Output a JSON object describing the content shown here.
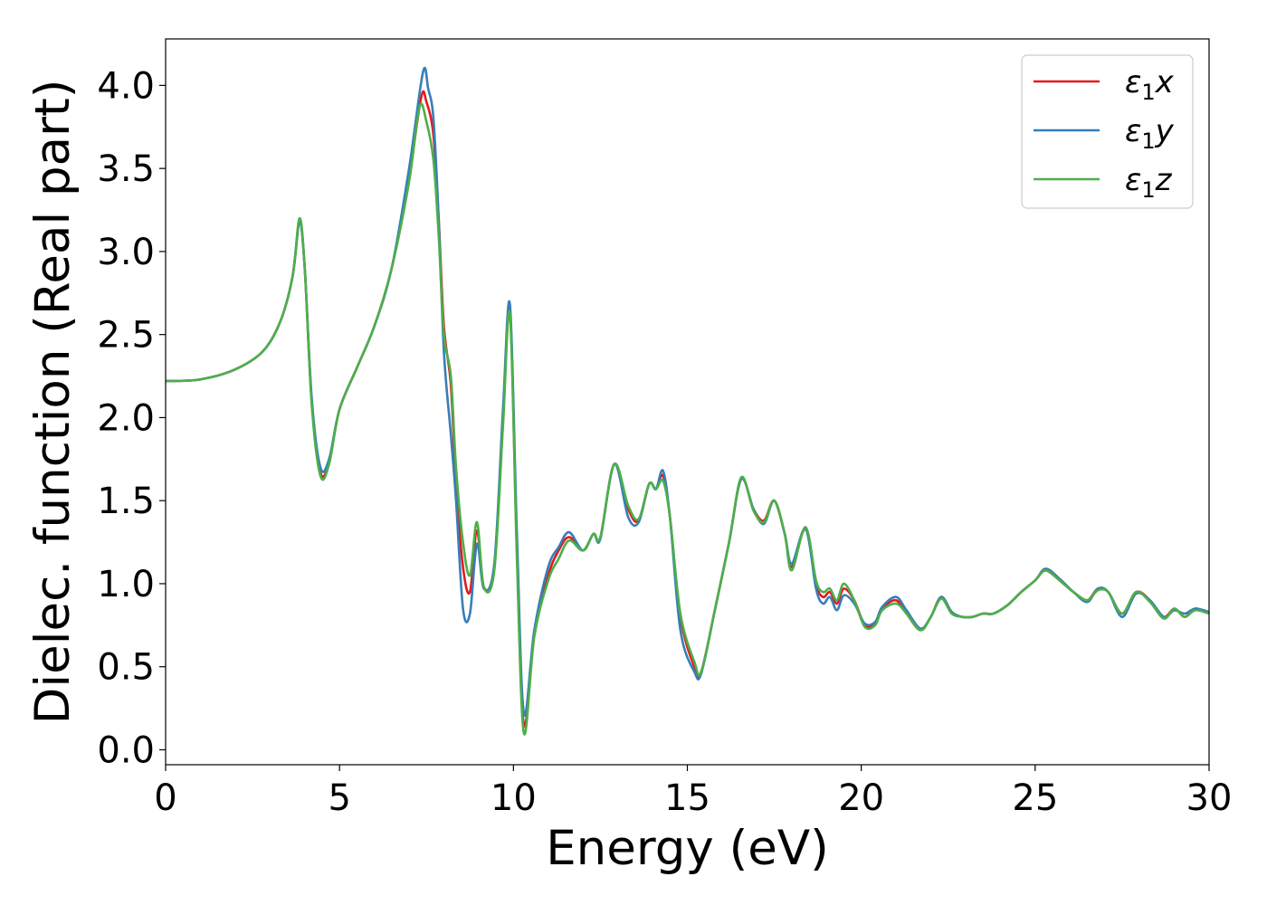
{
  "chart_data": {
    "type": "line",
    "xlabel": "Energy (eV)",
    "ylabel": "Dielec. function (Real part)",
    "xlim": [
      0,
      30
    ],
    "ylim": [
      -0.09,
      4.28
    ],
    "x_ticks": [
      "0",
      "5",
      "10",
      "15",
      "20",
      "25",
      "30"
    ],
    "x_tick_values": [
      0,
      5,
      10,
      15,
      20,
      25,
      30
    ],
    "y_ticks": [
      "0.0",
      "0.5",
      "1.0",
      "1.5",
      "2.0",
      "2.5",
      "3.0",
      "3.5",
      "4.0"
    ],
    "y_tick_values": [
      0.0,
      0.5,
      1.0,
      1.5,
      2.0,
      2.5,
      3.0,
      3.5,
      4.0
    ],
    "grid": false,
    "legend_position": "top-right",
    "series": [
      {
        "name": "ε1x",
        "symbol": "ε",
        "subscript": "1",
        "suffix": "x",
        "color": "#e41a1c",
        "points": [
          [
            0,
            2.22
          ],
          [
            1,
            2.23
          ],
          [
            2,
            2.29
          ],
          [
            2.8,
            2.4
          ],
          [
            3.3,
            2.58
          ],
          [
            3.65,
            2.85
          ],
          [
            3.85,
            3.18
          ],
          [
            4.0,
            2.9
          ],
          [
            4.2,
            2.1
          ],
          [
            4.45,
            1.67
          ],
          [
            4.7,
            1.73
          ],
          [
            5.0,
            2.05
          ],
          [
            5.5,
            2.3
          ],
          [
            6.0,
            2.55
          ],
          [
            6.5,
            2.9
          ],
          [
            7.0,
            3.45
          ],
          [
            7.35,
            3.93
          ],
          [
            7.5,
            3.9
          ],
          [
            7.7,
            3.7
          ],
          [
            7.85,
            3.2
          ],
          [
            8.0,
            2.55
          ],
          [
            8.2,
            2.2
          ],
          [
            8.35,
            1.6
          ],
          [
            8.55,
            1.1
          ],
          [
            8.75,
            0.95
          ],
          [
            8.95,
            1.32
          ],
          [
            9.15,
            0.98
          ],
          [
            9.45,
            1.1
          ],
          [
            9.7,
            2.0
          ],
          [
            9.9,
            2.65
          ],
          [
            10.1,
            1.2
          ],
          [
            10.3,
            0.15
          ],
          [
            10.6,
            0.7
          ],
          [
            11.0,
            1.05
          ],
          [
            11.3,
            1.2
          ],
          [
            11.6,
            1.28
          ],
          [
            12.0,
            1.2
          ],
          [
            12.3,
            1.3
          ],
          [
            12.5,
            1.28
          ],
          [
            12.9,
            1.72
          ],
          [
            13.3,
            1.45
          ],
          [
            13.6,
            1.38
          ],
          [
            13.9,
            1.6
          ],
          [
            14.1,
            1.57
          ],
          [
            14.3,
            1.65
          ],
          [
            14.5,
            1.4
          ],
          [
            14.8,
            0.8
          ],
          [
            15.2,
            0.5
          ],
          [
            15.4,
            0.47
          ],
          [
            15.8,
            0.85
          ],
          [
            16.2,
            1.25
          ],
          [
            16.55,
            1.63
          ],
          [
            16.9,
            1.45
          ],
          [
            17.2,
            1.38
          ],
          [
            17.5,
            1.5
          ],
          [
            17.8,
            1.3
          ],
          [
            18.0,
            1.1
          ],
          [
            18.4,
            1.33
          ],
          [
            18.7,
            1.0
          ],
          [
            18.9,
            0.92
          ],
          [
            19.1,
            0.95
          ],
          [
            19.3,
            0.88
          ],
          [
            19.5,
            0.97
          ],
          [
            19.8,
            0.9
          ],
          [
            20.1,
            0.75
          ],
          [
            20.4,
            0.76
          ],
          [
            20.6,
            0.85
          ],
          [
            21.0,
            0.9
          ],
          [
            21.3,
            0.82
          ],
          [
            21.7,
            0.72
          ],
          [
            22.0,
            0.8
          ],
          [
            22.3,
            0.92
          ],
          [
            22.6,
            0.83
          ],
          [
            22.9,
            0.8
          ],
          [
            23.2,
            0.8
          ],
          [
            23.5,
            0.82
          ],
          [
            23.8,
            0.82
          ],
          [
            24.2,
            0.87
          ],
          [
            24.6,
            0.95
          ],
          [
            25.0,
            1.02
          ],
          [
            25.3,
            1.08
          ],
          [
            25.7,
            1.02
          ],
          [
            26.1,
            0.95
          ],
          [
            26.5,
            0.9
          ],
          [
            26.8,
            0.97
          ],
          [
            27.1,
            0.95
          ],
          [
            27.5,
            0.82
          ],
          [
            27.9,
            0.95
          ],
          [
            28.3,
            0.9
          ],
          [
            28.7,
            0.8
          ],
          [
            29.0,
            0.85
          ],
          [
            29.3,
            0.8
          ],
          [
            29.6,
            0.85
          ],
          [
            30.0,
            0.82
          ]
        ]
      },
      {
        "name": "ε1y",
        "symbol": "ε",
        "subscript": "1",
        "suffix": "y",
        "color": "#377eb8",
        "points": [
          [
            0,
            2.22
          ],
          [
            1,
            2.23
          ],
          [
            2,
            2.29
          ],
          [
            2.8,
            2.4
          ],
          [
            3.3,
            2.58
          ],
          [
            3.65,
            2.85
          ],
          [
            3.85,
            3.18
          ],
          [
            4.0,
            2.9
          ],
          [
            4.2,
            2.12
          ],
          [
            4.45,
            1.7
          ],
          [
            4.7,
            1.75
          ],
          [
            5.0,
            2.05
          ],
          [
            5.5,
            2.3
          ],
          [
            6.0,
            2.55
          ],
          [
            6.5,
            2.9
          ],
          [
            7.0,
            3.5
          ],
          [
            7.4,
            4.08
          ],
          [
            7.55,
            3.98
          ],
          [
            7.7,
            3.8
          ],
          [
            7.85,
            3.2
          ],
          [
            8.0,
            2.4
          ],
          [
            8.2,
            1.9
          ],
          [
            8.35,
            1.5
          ],
          [
            8.55,
            0.85
          ],
          [
            8.75,
            0.82
          ],
          [
            8.95,
            1.24
          ],
          [
            9.15,
            0.97
          ],
          [
            9.45,
            1.12
          ],
          [
            9.7,
            2.05
          ],
          [
            9.9,
            2.68
          ],
          [
            10.1,
            1.3
          ],
          [
            10.3,
            0.22
          ],
          [
            10.6,
            0.72
          ],
          [
            11.0,
            1.1
          ],
          [
            11.3,
            1.22
          ],
          [
            11.6,
            1.31
          ],
          [
            12.0,
            1.2
          ],
          [
            12.3,
            1.3
          ],
          [
            12.5,
            1.27
          ],
          [
            12.9,
            1.72
          ],
          [
            13.3,
            1.4
          ],
          [
            13.6,
            1.37
          ],
          [
            13.9,
            1.6
          ],
          [
            14.1,
            1.57
          ],
          [
            14.3,
            1.68
          ],
          [
            14.5,
            1.4
          ],
          [
            14.8,
            0.72
          ],
          [
            15.2,
            0.47
          ],
          [
            15.4,
            0.46
          ],
          [
            15.8,
            0.85
          ],
          [
            16.2,
            1.25
          ],
          [
            16.55,
            1.63
          ],
          [
            16.9,
            1.45
          ],
          [
            17.2,
            1.36
          ],
          [
            17.5,
            1.5
          ],
          [
            17.8,
            1.3
          ],
          [
            18.0,
            1.12
          ],
          [
            18.4,
            1.33
          ],
          [
            18.7,
            0.97
          ],
          [
            18.9,
            0.88
          ],
          [
            19.1,
            0.92
          ],
          [
            19.3,
            0.84
          ],
          [
            19.5,
            0.93
          ],
          [
            19.8,
            0.88
          ],
          [
            20.1,
            0.76
          ],
          [
            20.4,
            0.77
          ],
          [
            20.6,
            0.86
          ],
          [
            21.0,
            0.92
          ],
          [
            21.3,
            0.84
          ],
          [
            21.7,
            0.73
          ],
          [
            22.0,
            0.8
          ],
          [
            22.3,
            0.92
          ],
          [
            22.6,
            0.83
          ],
          [
            22.9,
            0.8
          ],
          [
            23.2,
            0.8
          ],
          [
            23.5,
            0.82
          ],
          [
            23.8,
            0.82
          ],
          [
            24.2,
            0.87
          ],
          [
            24.6,
            0.95
          ],
          [
            25.0,
            1.02
          ],
          [
            25.3,
            1.09
          ],
          [
            25.7,
            1.03
          ],
          [
            26.1,
            0.95
          ],
          [
            26.5,
            0.89
          ],
          [
            26.8,
            0.97
          ],
          [
            27.1,
            0.95
          ],
          [
            27.5,
            0.8
          ],
          [
            27.9,
            0.94
          ],
          [
            28.3,
            0.9
          ],
          [
            28.7,
            0.8
          ],
          [
            29.0,
            0.84
          ],
          [
            29.3,
            0.82
          ],
          [
            29.6,
            0.85
          ],
          [
            30.0,
            0.83
          ]
        ]
      },
      {
        "name": "ε1z",
        "symbol": "ε",
        "subscript": "1",
        "suffix": "z",
        "color": "#4daf4a",
        "points": [
          [
            0,
            2.22
          ],
          [
            1,
            2.23
          ],
          [
            2,
            2.29
          ],
          [
            2.8,
            2.4
          ],
          [
            3.3,
            2.58
          ],
          [
            3.65,
            2.85
          ],
          [
            3.85,
            3.2
          ],
          [
            4.0,
            2.9
          ],
          [
            4.2,
            2.08
          ],
          [
            4.45,
            1.65
          ],
          [
            4.7,
            1.72
          ],
          [
            5.0,
            2.05
          ],
          [
            5.5,
            2.3
          ],
          [
            6.0,
            2.55
          ],
          [
            6.5,
            2.9
          ],
          [
            7.0,
            3.42
          ],
          [
            7.3,
            3.87
          ],
          [
            7.5,
            3.78
          ],
          [
            7.7,
            3.55
          ],
          [
            7.85,
            3.1
          ],
          [
            8.0,
            2.5
          ],
          [
            8.2,
            2.25
          ],
          [
            8.35,
            1.7
          ],
          [
            8.55,
            1.25
          ],
          [
            8.75,
            1.05
          ],
          [
            8.95,
            1.37
          ],
          [
            9.15,
            0.98
          ],
          [
            9.45,
            1.08
          ],
          [
            9.7,
            1.95
          ],
          [
            9.9,
            2.62
          ],
          [
            10.1,
            1.15
          ],
          [
            10.3,
            0.1
          ],
          [
            10.6,
            0.68
          ],
          [
            11.0,
            1.02
          ],
          [
            11.3,
            1.15
          ],
          [
            11.6,
            1.26
          ],
          [
            12.0,
            1.2
          ],
          [
            12.3,
            1.3
          ],
          [
            12.5,
            1.28
          ],
          [
            12.9,
            1.72
          ],
          [
            13.3,
            1.47
          ],
          [
            13.6,
            1.39
          ],
          [
            13.9,
            1.6
          ],
          [
            14.1,
            1.57
          ],
          [
            14.3,
            1.62
          ],
          [
            14.5,
            1.4
          ],
          [
            14.8,
            0.82
          ],
          [
            15.2,
            0.53
          ],
          [
            15.4,
            0.47
          ],
          [
            15.8,
            0.85
          ],
          [
            16.2,
            1.25
          ],
          [
            16.55,
            1.64
          ],
          [
            16.9,
            1.44
          ],
          [
            17.2,
            1.37
          ],
          [
            17.5,
            1.5
          ],
          [
            17.8,
            1.3
          ],
          [
            18.0,
            1.08
          ],
          [
            18.4,
            1.34
          ],
          [
            18.7,
            1.02
          ],
          [
            18.9,
            0.95
          ],
          [
            19.1,
            0.97
          ],
          [
            19.3,
            0.9
          ],
          [
            19.5,
            1.0
          ],
          [
            19.8,
            0.9
          ],
          [
            20.1,
            0.74
          ],
          [
            20.4,
            0.75
          ],
          [
            20.6,
            0.84
          ],
          [
            21.0,
            0.88
          ],
          [
            21.3,
            0.82
          ],
          [
            21.7,
            0.72
          ],
          [
            22.0,
            0.8
          ],
          [
            22.3,
            0.91
          ],
          [
            22.6,
            0.82
          ],
          [
            22.9,
            0.8
          ],
          [
            23.2,
            0.8
          ],
          [
            23.5,
            0.82
          ],
          [
            23.8,
            0.82
          ],
          [
            24.2,
            0.87
          ],
          [
            24.6,
            0.95
          ],
          [
            25.0,
            1.02
          ],
          [
            25.3,
            1.08
          ],
          [
            25.7,
            1.02
          ],
          [
            26.1,
            0.95
          ],
          [
            26.5,
            0.9
          ],
          [
            26.8,
            0.96
          ],
          [
            27.1,
            0.95
          ],
          [
            27.5,
            0.82
          ],
          [
            27.9,
            0.95
          ],
          [
            28.3,
            0.89
          ],
          [
            28.7,
            0.79
          ],
          [
            29.0,
            0.85
          ],
          [
            29.3,
            0.8
          ],
          [
            29.6,
            0.84
          ],
          [
            30.0,
            0.82
          ]
        ]
      }
    ]
  }
}
